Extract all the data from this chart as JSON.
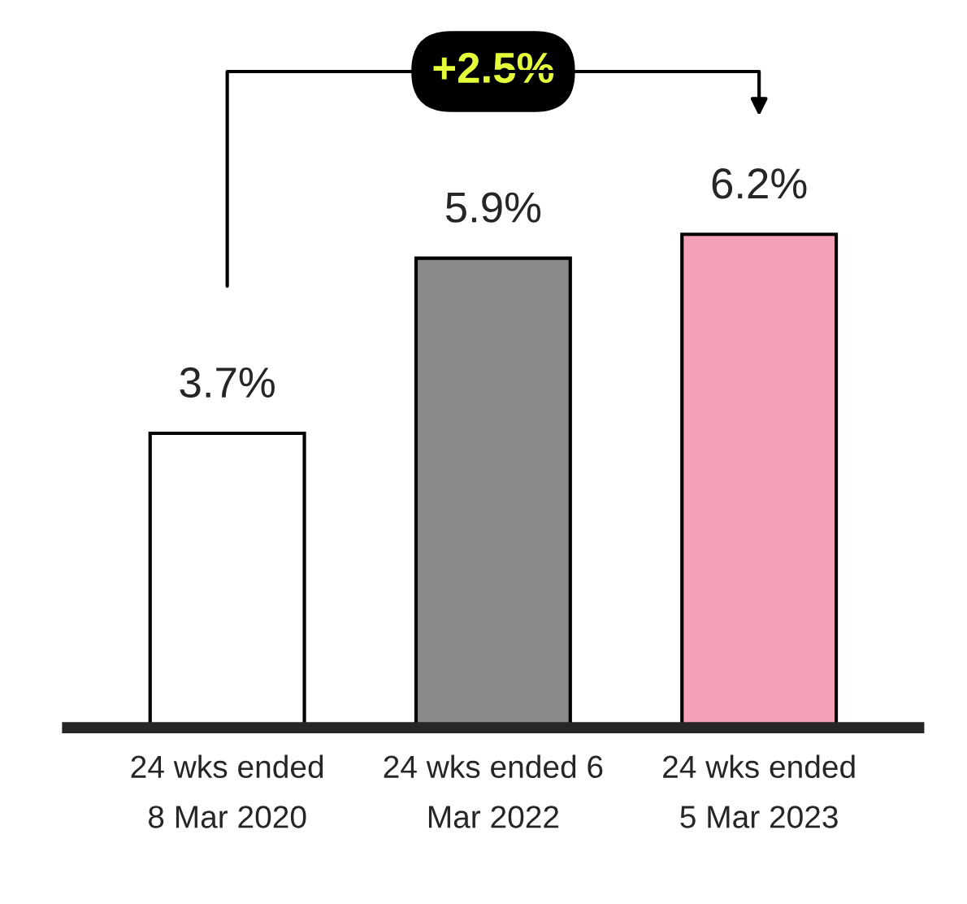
{
  "chart_data": {
    "type": "bar",
    "categories": [
      "24 wks ended\n8 Mar 2020",
      "24 wks ended 6\nMar 2022",
      "24 wks ended\n5 Mar 2023"
    ],
    "values": [
      3.7,
      5.9,
      6.2
    ],
    "colors": [
      "#ffffff",
      "#8a8a8a",
      "#f5a0b6"
    ],
    "value_labels": [
      "3.7%",
      "5.9%",
      "6.2%"
    ],
    "annotations": [
      "+2.5%"
    ],
    "grid": false,
    "legend": false
  }
}
